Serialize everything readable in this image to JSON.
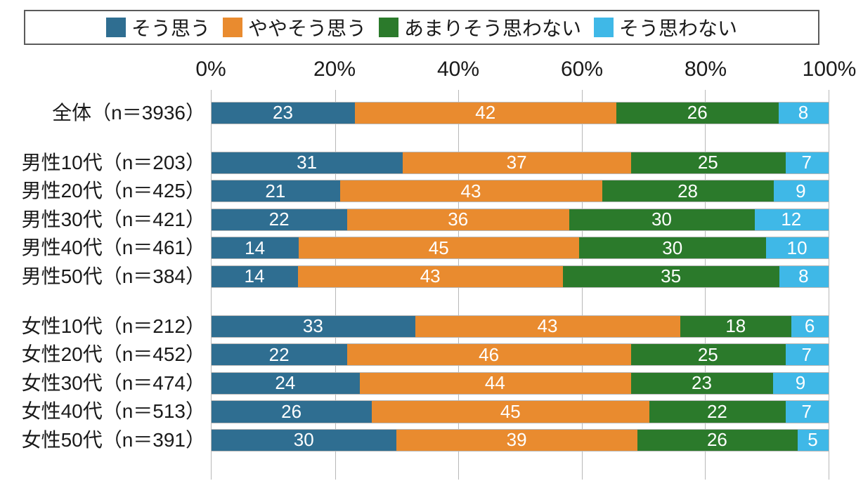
{
  "chart": {
    "type": "stacked-bar-horizontal-100pct",
    "background_color": "#ffffff",
    "font_family": "MS PGothic / Meiryo",
    "axis": {
      "xlim": [
        0,
        100
      ],
      "ticks": [
        0,
        20,
        40,
        60,
        80,
        100
      ],
      "tick_labels": [
        "0%",
        "20%",
        "40%",
        "60%",
        "80%",
        "100%"
      ],
      "tick_fontsize": 30,
      "tick_color": "#1a1a1a",
      "grid_color": "#b8b8b8"
    },
    "legend": {
      "border_color": "#5b5b5b",
      "items": [
        {
          "label": "そう思う",
          "color": "#2f6e91"
        },
        {
          "label": "ややそう思う",
          "color": "#e98b2f"
        },
        {
          "label": "あまりそう思わない",
          "color": "#2b7a2b"
        },
        {
          "label": "そう思わない",
          "color": "#3fb8e7"
        }
      ],
      "fontsize": 28,
      "text_color": "#1a1a1a"
    },
    "category_label_fontsize": 28,
    "category_label_color": "#1a1a1a",
    "value_label_fontsize": 26,
    "value_label_color": "#ffffff",
    "bar_height_pct": 5.8,
    "row_pitch_pct": 7.3,
    "group_gap_pct": 5.5,
    "groups": [
      {
        "rows": [
          {
            "label": "全体（n＝3936）",
            "values": [
              23,
              42,
              26,
              8
            ]
          }
        ]
      },
      {
        "rows": [
          {
            "label": "男性10代（n＝203）",
            "values": [
              31,
              37,
              25,
              7
            ]
          },
          {
            "label": "男性20代（n＝425）",
            "values": [
              21,
              43,
              28,
              9
            ]
          },
          {
            "label": "男性30代（n＝421）",
            "values": [
              22,
              36,
              30,
              12
            ]
          },
          {
            "label": "男性40代（n＝461）",
            "values": [
              14,
              45,
              30,
              10
            ]
          },
          {
            "label": "男性50代（n＝384）",
            "values": [
              14,
              43,
              35,
              8
            ]
          }
        ]
      },
      {
        "rows": [
          {
            "label": "女性10代（n＝212）",
            "values": [
              33,
              43,
              18,
              6
            ]
          },
          {
            "label": "女性20代（n＝452）",
            "values": [
              22,
              46,
              25,
              7
            ]
          },
          {
            "label": "女性30代（n＝474）",
            "values": [
              24,
              44,
              23,
              9
            ]
          },
          {
            "label": "女性40代（n＝513）",
            "values": [
              26,
              45,
              22,
              7
            ]
          },
          {
            "label": "女性50代（n＝391）",
            "values": [
              30,
              39,
              26,
              5
            ]
          }
        ]
      }
    ]
  }
}
